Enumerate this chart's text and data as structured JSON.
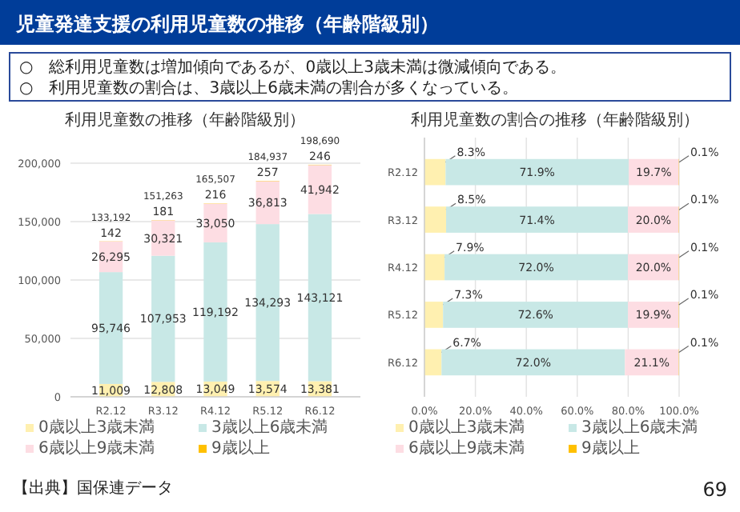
{
  "chart_data": [
    {
      "type": "bar",
      "stacked": true,
      "title": "利用児童数の推移（年齢階級別）",
      "categories": [
        "R2.12",
        "R3.12",
        "R4.12",
        "R5.12",
        "R6.12"
      ],
      "series": [
        {
          "name": "0歳以上3歳未満",
          "color": "#fff0b0",
          "values": [
            11009,
            12808,
            13049,
            13574,
            13381
          ],
          "value_labels": [
            "11,009",
            "12,808",
            "13,049",
            "13,574",
            "13,381"
          ]
        },
        {
          "name": "3歳以上6歳未満",
          "color": "#c8e8e6",
          "values": [
            95746,
            107953,
            119192,
            134293,
            143121
          ],
          "value_labels": [
            "95,746",
            "107,953",
            "119,192",
            "134,293",
            "143,121"
          ]
        },
        {
          "name": "6歳以上9歳未満",
          "color": "#fddde3",
          "values": [
            26295,
            30321,
            33050,
            36813,
            41942
          ],
          "value_labels": [
            "26,295",
            "30,321",
            "33,050",
            "36,813",
            "41,942"
          ]
        },
        {
          "name": "9歳以上",
          "color": "#ffc000",
          "values": [
            142,
            181,
            216,
            257,
            246
          ],
          "value_labels": [
            "142",
            "181",
            "216",
            "257",
            "246"
          ]
        }
      ],
      "totals": [
        "133,192",
        "151,263",
        "165,507",
        "184,937",
        "198,690"
      ],
      "ylim": [
        0,
        200000
      ],
      "yticks": [
        0,
        {
          "value": 50000,
          "label": "50,000"
        },
        {
          "value": 100000,
          "label": "100,000"
        },
        {
          "value": 150000,
          "label": "150,000"
        },
        {
          "value": 200000,
          "label": "200,000"
        }
      ],
      "grid": "y",
      "legend": "bottom",
      "annotations": [
        "児童発達支援の利用児童数の推移（年齢階級別）",
        "○　総利用児童数は増加傾向であるが、0歳以上3歳未満は微減傾向である。",
        "○　利用児童数の割合は、3歳以上6歳未満の割合が多くなっている。",
        "【出典】国保連データ",
        "69"
      ]
    },
    {
      "type": "bar",
      "stacked": true,
      "orientation": "horizontal",
      "title": "利用児童数の割合の推移（年齢階級別）",
      "categories": [
        "R2.12",
        "R3.12",
        "R4.12",
        "R5.12",
        "R6.12"
      ],
      "series": [
        {
          "name": "0歳以上3歳未満",
          "color": "#fff0b0",
          "values": [
            8.3,
            8.5,
            7.9,
            7.3,
            6.7
          ],
          "value_labels": [
            "8.3%",
            "8.5%",
            "7.9%",
            "7.3%",
            "6.7%"
          ]
        },
        {
          "name": "3歳以上6歳未満",
          "color": "#c8e8e6",
          "values": [
            71.9,
            71.4,
            72.0,
            72.6,
            72.0
          ],
          "value_labels": [
            "71.9%",
            "71.4%",
            "72.0%",
            "72.6%",
            "72.0%"
          ]
        },
        {
          "name": "6歳以上9歳未満",
          "color": "#fddde3",
          "values": [
            19.7,
            20.0,
            20.0,
            19.9,
            21.1
          ],
          "value_labels": [
            "19.7%",
            "20.0%",
            "20.0%",
            "19.9%",
            "21.1%"
          ]
        },
        {
          "name": "9歳以上",
          "color": "#ffc000",
          "values": [
            0.1,
            0.1,
            0.1,
            0.1,
            0.1
          ],
          "value_labels": [
            "0.1%",
            "0.1%",
            "0.1%",
            "0.1%",
            "0.1%"
          ]
        }
      ],
      "xlim": [
        0,
        100
      ],
      "xticks": [
        {
          "value": 0,
          "label": "0.0%"
        },
        {
          "value": 20,
          "label": "20.0%"
        },
        {
          "value": 40,
          "label": "40.0%"
        },
        {
          "value": 60,
          "label": "60.0%"
        },
        {
          "value": 80,
          "label": "80.0%"
        },
        {
          "value": 100,
          "label": "100.0%"
        }
      ],
      "grid": "x",
      "legend": "bottom"
    }
  ]
}
